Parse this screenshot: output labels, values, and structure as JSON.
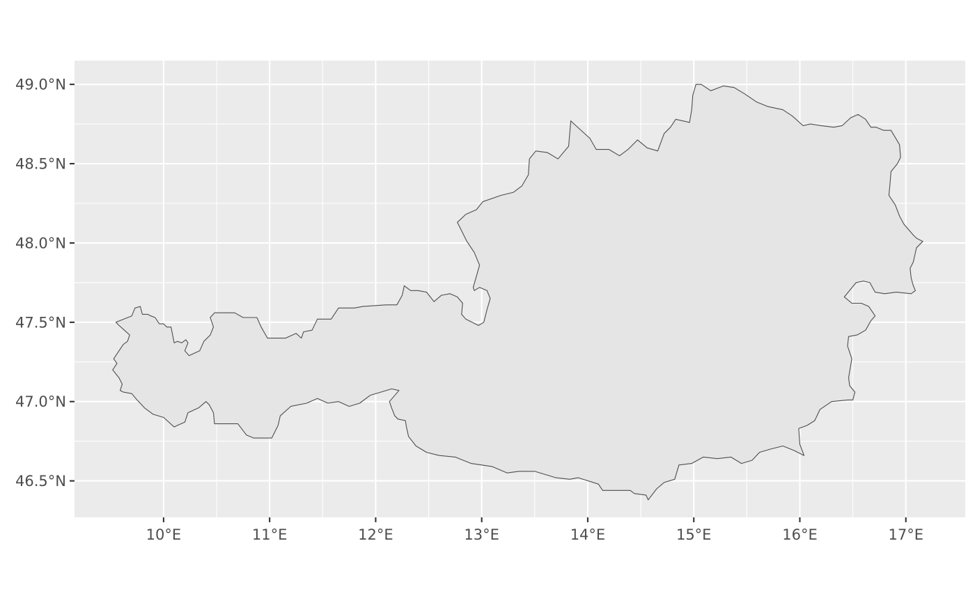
{
  "map": {
    "type": "choropleth-outline",
    "projection": "geographic",
    "panel_background": "#ebebeb",
    "grid_color": "#ffffff",
    "region_fill": "#e5e5e5",
    "region_stroke": "#4d4d4d",
    "xlim": [
      9.16,
      17.56
    ],
    "ylim": [
      46.27,
      49.15
    ],
    "x_ticks": [
      {
        "value": 10,
        "label": "10°E"
      },
      {
        "value": 11,
        "label": "11°E"
      },
      {
        "value": 12,
        "label": "12°E"
      },
      {
        "value": 13,
        "label": "13°E"
      },
      {
        "value": 14,
        "label": "14°E"
      },
      {
        "value": 15,
        "label": "15°E"
      },
      {
        "value": 16,
        "label": "16°E"
      },
      {
        "value": 17,
        "label": "17°E"
      }
    ],
    "y_ticks": [
      {
        "value": 46.5,
        "label": "46.5°N"
      },
      {
        "value": 47.0,
        "label": "47.0°N"
      },
      {
        "value": 47.5,
        "label": "47.5°N"
      },
      {
        "value": 48.0,
        "label": "48.0°N"
      },
      {
        "value": 48.5,
        "label": "48.5°N"
      },
      {
        "value": 49.0,
        "label": "49.0°N"
      }
    ],
    "outline": [
      [
        9.55,
        47.5
      ],
      [
        9.7,
        47.54
      ],
      [
        9.73,
        47.59
      ],
      [
        9.78,
        47.6
      ],
      [
        9.8,
        47.55
      ],
      [
        9.85,
        47.55
      ],
      [
        9.88,
        47.54
      ],
      [
        9.92,
        47.53
      ],
      [
        9.96,
        47.49
      ],
      [
        10.0,
        47.49
      ],
      [
        10.03,
        47.47
      ],
      [
        10.07,
        47.47
      ],
      [
        10.1,
        47.37
      ],
      [
        10.13,
        47.38
      ],
      [
        10.17,
        47.37
      ],
      [
        10.21,
        47.39
      ],
      [
        10.23,
        47.37
      ],
      [
        10.2,
        47.32
      ],
      [
        10.24,
        47.29
      ],
      [
        10.34,
        47.32
      ],
      [
        10.38,
        47.38
      ],
      [
        10.44,
        47.42
      ],
      [
        10.47,
        47.47
      ],
      [
        10.44,
        47.53
      ],
      [
        10.48,
        47.56
      ],
      [
        10.58,
        47.56
      ],
      [
        10.67,
        47.56
      ],
      [
        10.75,
        47.53
      ],
      [
        10.88,
        47.53
      ],
      [
        10.92,
        47.47
      ],
      [
        10.98,
        47.4
      ],
      [
        11.15,
        47.4
      ],
      [
        11.25,
        47.43
      ],
      [
        11.3,
        47.4
      ],
      [
        11.32,
        47.44
      ],
      [
        11.4,
        47.45
      ],
      [
        11.45,
        47.52
      ],
      [
        11.58,
        47.52
      ],
      [
        11.65,
        47.59
      ],
      [
        11.8,
        47.59
      ],
      [
        11.88,
        47.6
      ],
      [
        12.1,
        47.61
      ],
      [
        12.2,
        47.61
      ],
      [
        12.25,
        47.67
      ],
      [
        12.27,
        47.73
      ],
      [
        12.33,
        47.7
      ],
      [
        12.4,
        47.7
      ],
      [
        12.48,
        47.69
      ],
      [
        12.55,
        47.63
      ],
      [
        12.62,
        47.67
      ],
      [
        12.7,
        47.68
      ],
      [
        12.77,
        47.66
      ],
      [
        12.82,
        47.62
      ],
      [
        12.81,
        47.55
      ],
      [
        12.85,
        47.52
      ],
      [
        12.97,
        47.48
      ],
      [
        13.02,
        47.5
      ],
      [
        13.05,
        47.58
      ],
      [
        13.08,
        47.65
      ],
      [
        13.05,
        47.7
      ],
      [
        12.98,
        47.72
      ],
      [
        12.93,
        47.7
      ],
      [
        12.92,
        47.72
      ],
      [
        12.98,
        47.86
      ],
      [
        12.93,
        47.94
      ],
      [
        12.86,
        48.01
      ],
      [
        12.77,
        48.13
      ],
      [
        12.85,
        48.18
      ],
      [
        12.95,
        48.21
      ],
      [
        13.01,
        48.26
      ],
      [
        13.18,
        48.3
      ],
      [
        13.3,
        48.32
      ],
      [
        13.38,
        48.36
      ],
      [
        13.44,
        48.43
      ],
      [
        13.45,
        48.53
      ],
      [
        13.51,
        48.58
      ],
      [
        13.62,
        48.57
      ],
      [
        13.72,
        48.53
      ],
      [
        13.82,
        48.61
      ],
      [
        13.84,
        48.77
      ],
      [
        13.92,
        48.72
      ],
      [
        14.02,
        48.66
      ],
      [
        14.08,
        48.59
      ],
      [
        14.2,
        48.59
      ],
      [
        14.3,
        48.55
      ],
      [
        14.38,
        48.59
      ],
      [
        14.47,
        48.65
      ],
      [
        14.56,
        48.6
      ],
      [
        14.66,
        48.58
      ],
      [
        14.72,
        48.69
      ],
      [
        14.78,
        48.73
      ],
      [
        14.83,
        48.78
      ],
      [
        14.96,
        48.76
      ],
      [
        14.98,
        48.84
      ],
      [
        14.99,
        48.93
      ],
      [
        15.02,
        49.0
      ],
      [
        15.07,
        49.0
      ],
      [
        15.16,
        48.96
      ],
      [
        15.28,
        48.99
      ],
      [
        15.38,
        48.98
      ],
      [
        15.48,
        48.94
      ],
      [
        15.59,
        48.89
      ],
      [
        15.7,
        48.86
      ],
      [
        15.84,
        48.84
      ],
      [
        15.93,
        48.8
      ],
      [
        16.03,
        48.74
      ],
      [
        16.1,
        48.75
      ],
      [
        16.2,
        48.74
      ],
      [
        16.32,
        48.73
      ],
      [
        16.4,
        48.74
      ],
      [
        16.48,
        48.79
      ],
      [
        16.55,
        48.81
      ],
      [
        16.62,
        48.78
      ],
      [
        16.67,
        48.73
      ],
      [
        16.72,
        48.73
      ],
      [
        16.79,
        48.71
      ],
      [
        16.86,
        48.71
      ],
      [
        16.94,
        48.62
      ],
      [
        16.95,
        48.54
      ],
      [
        16.92,
        48.5
      ],
      [
        16.86,
        48.45
      ],
      [
        16.85,
        48.37
      ],
      [
        16.84,
        48.3
      ],
      [
        16.9,
        48.24
      ],
      [
        16.94,
        48.17
      ],
      [
        16.98,
        48.12
      ],
      [
        17.07,
        48.05
      ],
      [
        17.1,
        48.03
      ],
      [
        17.16,
        48.01
      ],
      [
        17.1,
        47.97
      ],
      [
        17.07,
        47.88
      ],
      [
        17.04,
        47.84
      ],
      [
        17.05,
        47.78
      ],
      [
        17.07,
        47.73
      ],
      [
        17.09,
        47.7
      ],
      [
        17.05,
        47.68
      ],
      [
        16.91,
        47.69
      ],
      [
        16.8,
        47.68
      ],
      [
        16.71,
        47.69
      ],
      [
        16.66,
        47.75
      ],
      [
        16.6,
        47.76
      ],
      [
        16.53,
        47.75
      ],
      [
        16.42,
        47.66
      ],
      [
        16.49,
        47.62
      ],
      [
        16.58,
        47.62
      ],
      [
        16.65,
        47.6
      ],
      [
        16.71,
        47.54
      ],
      [
        16.67,
        47.51
      ],
      [
        16.62,
        47.45
      ],
      [
        16.54,
        47.42
      ],
      [
        16.46,
        47.41
      ],
      [
        16.45,
        47.35
      ],
      [
        16.49,
        47.27
      ],
      [
        16.46,
        47.15
      ],
      [
        16.47,
        47.1
      ],
      [
        16.52,
        47.06
      ],
      [
        16.5,
        47.01
      ],
      [
        16.45,
        47.01
      ],
      [
        16.3,
        47.0
      ],
      [
        16.19,
        46.95
      ],
      [
        16.14,
        46.88
      ],
      [
        16.07,
        46.85
      ],
      [
        15.99,
        46.83
      ],
      [
        16.0,
        46.73
      ],
      [
        16.04,
        46.66
      ],
      [
        15.95,
        46.69
      ],
      [
        15.84,
        46.72
      ],
      [
        15.72,
        46.7
      ],
      [
        15.62,
        46.68
      ],
      [
        15.55,
        46.63
      ],
      [
        15.45,
        46.61
      ],
      [
        15.35,
        46.65
      ],
      [
        15.22,
        46.64
      ],
      [
        15.09,
        46.65
      ],
      [
        14.98,
        46.61
      ],
      [
        14.86,
        46.6
      ],
      [
        14.82,
        46.51
      ],
      [
        14.72,
        46.49
      ],
      [
        14.65,
        46.45
      ],
      [
        14.57,
        46.38
      ],
      [
        14.55,
        46.41
      ],
      [
        14.44,
        46.42
      ],
      [
        14.4,
        46.44
      ],
      [
        14.25,
        46.44
      ],
      [
        14.14,
        46.44
      ],
      [
        14.1,
        46.48
      ],
      [
        13.91,
        46.52
      ],
      [
        13.83,
        46.51
      ],
      [
        13.7,
        46.52
      ],
      [
        13.5,
        46.56
      ],
      [
        13.35,
        46.56
      ],
      [
        13.24,
        46.55
      ],
      [
        13.1,
        46.59
      ],
      [
        13.0,
        46.6
      ],
      [
        12.9,
        46.61
      ],
      [
        12.75,
        46.65
      ],
      [
        12.6,
        46.66
      ],
      [
        12.48,
        46.68
      ],
      [
        12.38,
        46.72
      ],
      [
        12.31,
        46.78
      ],
      [
        12.29,
        46.84
      ],
      [
        12.28,
        46.88
      ],
      [
        12.21,
        46.89
      ],
      [
        12.18,
        46.91
      ],
      [
        12.15,
        46.96
      ],
      [
        12.13,
        47.0
      ],
      [
        12.22,
        47.07
      ],
      [
        12.15,
        47.08
      ],
      [
        12.05,
        47.06
      ],
      [
        11.95,
        47.04
      ],
      [
        11.85,
        46.99
      ],
      [
        11.75,
        46.97
      ],
      [
        11.65,
        47.0
      ],
      [
        11.55,
        46.99
      ],
      [
        11.45,
        47.02
      ],
      [
        11.35,
        46.99
      ],
      [
        11.2,
        46.97
      ],
      [
        11.1,
        46.91
      ],
      [
        11.08,
        46.85
      ],
      [
        11.02,
        46.77
      ],
      [
        10.93,
        46.77
      ],
      [
        10.85,
        46.77
      ],
      [
        10.78,
        46.79
      ],
      [
        10.7,
        46.86
      ],
      [
        10.6,
        46.86
      ],
      [
        10.48,
        46.86
      ],
      [
        10.47,
        46.93
      ],
      [
        10.43,
        46.98
      ],
      [
        10.4,
        47.0
      ],
      [
        10.33,
        46.96
      ],
      [
        10.23,
        46.93
      ],
      [
        10.2,
        46.87
      ],
      [
        10.13,
        46.85
      ],
      [
        10.1,
        46.84
      ],
      [
        10.0,
        46.9
      ],
      [
        9.9,
        46.92
      ],
      [
        9.82,
        46.96
      ],
      [
        9.75,
        47.01
      ],
      [
        9.7,
        47.05
      ],
      [
        9.62,
        47.06
      ],
      [
        9.59,
        47.07
      ],
      [
        9.61,
        47.11
      ],
      [
        9.58,
        47.15
      ],
      [
        9.52,
        47.2
      ],
      [
        9.56,
        47.24
      ],
      [
        9.53,
        47.27
      ],
      [
        9.58,
        47.32
      ],
      [
        9.62,
        47.36
      ],
      [
        9.66,
        47.38
      ],
      [
        9.68,
        47.42
      ],
      [
        9.63,
        47.45
      ],
      [
        9.58,
        47.48
      ],
      [
        9.55,
        47.5
      ]
    ]
  }
}
